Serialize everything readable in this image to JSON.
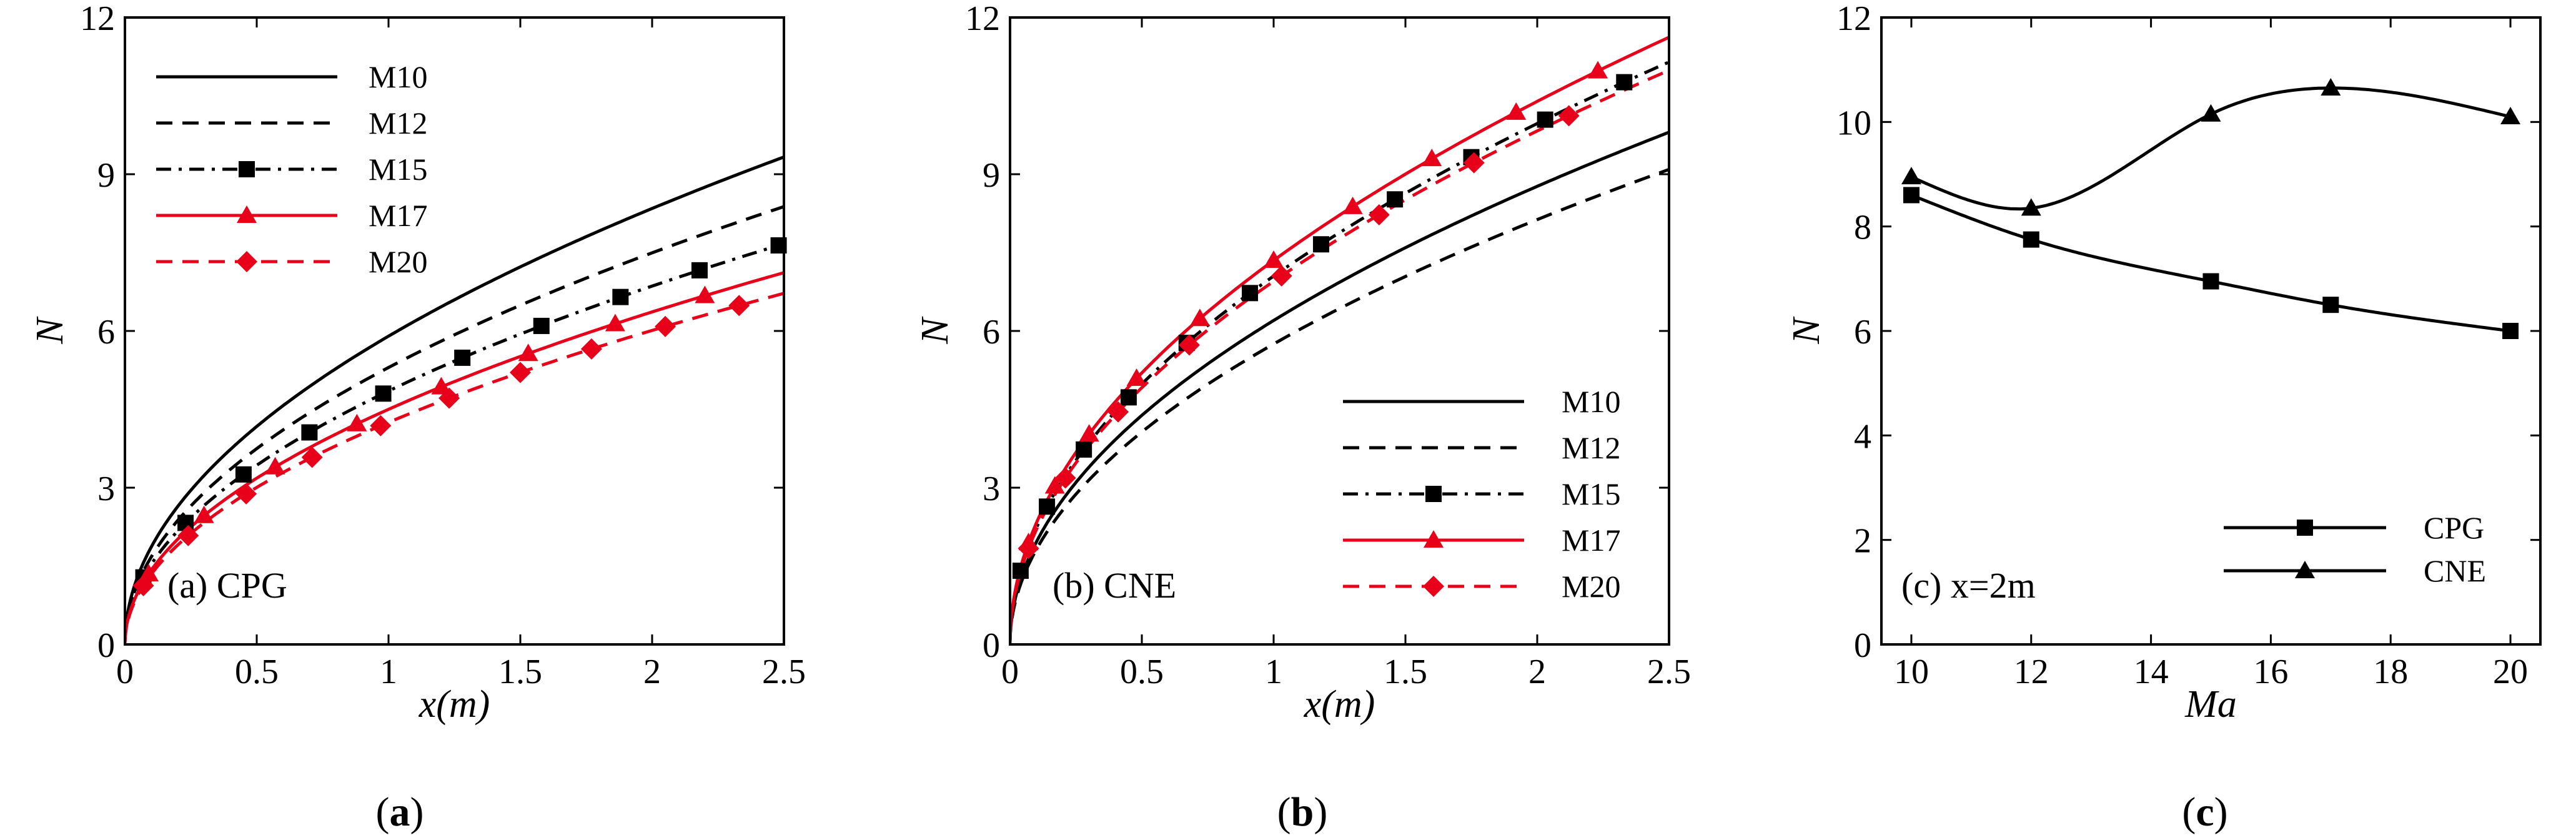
{
  "figure": {
    "captions": [
      "(a)",
      "(b)",
      "(c)"
    ]
  },
  "chart_data": [
    {
      "type": "line",
      "panel": "a",
      "annotation": "(a) CPG",
      "xlabel": "x(m)",
      "ylabel": "N",
      "xlim": [
        0,
        2.5
      ],
      "ylim": [
        0,
        12
      ],
      "xticks": [
        0,
        0.5,
        1,
        1.5,
        2,
        2.5
      ],
      "yticks": [
        0,
        3,
        6,
        9,
        12
      ],
      "legend_position": "top-left",
      "series": [
        {
          "name": "M10",
          "color": "#000000",
          "style": "solid",
          "marker": "none",
          "coef": 5.9,
          "exp": 0.5
        },
        {
          "name": "M12",
          "color": "#000000",
          "style": "dashed",
          "marker": "none",
          "coef": 5.3,
          "exp": 0.5
        },
        {
          "name": "M15",
          "color": "#000000",
          "style": "dashdot",
          "marker": "square",
          "coef": 4.85,
          "exp": 0.5,
          "marker_x": [
            0.07,
            0.23,
            0.45,
            0.7,
            0.98,
            1.28,
            1.58,
            1.88,
            2.18,
            2.48
          ]
        },
        {
          "name": "M17",
          "color": "#e8001b",
          "style": "solid",
          "marker": "triangle",
          "coef": 4.5,
          "exp": 0.5,
          "marker_x": [
            0.09,
            0.3,
            0.57,
            0.88,
            1.2,
            1.53,
            1.86,
            2.2
          ]
        },
        {
          "name": "M20",
          "color": "#e8001b",
          "style": "dashed",
          "marker": "diamond",
          "coef": 4.25,
          "exp": 0.5,
          "marker_x": [
            0.07,
            0.24,
            0.46,
            0.71,
            0.97,
            1.23,
            1.5,
            1.77,
            2.05,
            2.33
          ]
        }
      ]
    },
    {
      "type": "line",
      "panel": "b",
      "annotation": "(b) CNE",
      "xlabel": "x(m)",
      "ylabel": "N",
      "xlim": [
        0,
        2.5
      ],
      "ylim": [
        0,
        12
      ],
      "xticks": [
        0,
        0.5,
        1,
        1.5,
        2,
        2.5
      ],
      "yticks": [
        0,
        3,
        6,
        9,
        12
      ],
      "legend_position": "bottom-right",
      "series": [
        {
          "name": "M10",
          "color": "#000000",
          "style": "solid",
          "marker": "none",
          "coef": 6.2,
          "exp": 0.5
        },
        {
          "name": "M12",
          "color": "#000000",
          "style": "dashed",
          "marker": "none",
          "coef": 5.75,
          "exp": 0.5
        },
        {
          "name": "M15",
          "color": "#000000",
          "style": "dashdot",
          "marker": "square",
          "coef": 7.05,
          "exp": 0.5,
          "marker_x": [
            0.04,
            0.14,
            0.28,
            0.45,
            0.67,
            0.91,
            1.18,
            1.46,
            1.75,
            2.03,
            2.33
          ]
        },
        {
          "name": "M17",
          "color": "#e8001b",
          "style": "solid",
          "marker": "triangle",
          "coef": 7.35,
          "exp": 0.5,
          "marker_x": [
            0.07,
            0.17,
            0.3,
            0.48,
            0.72,
            1.0,
            1.3,
            1.6,
            1.92,
            2.23
          ]
        },
        {
          "name": "M20",
          "color": "#e8001b",
          "style": "dashed",
          "marker": "diamond",
          "coef": 6.95,
          "exp": 0.5,
          "marker_x": [
            0.07,
            0.21,
            0.41,
            0.68,
            1.03,
            1.4,
            1.76,
            2.12
          ]
        }
      ]
    },
    {
      "type": "line",
      "panel": "c",
      "annotation": "(c) x=2m",
      "xlabel": "Ma",
      "ylabel": "N",
      "xlim": [
        9.5,
        20.5
      ],
      "ylim": [
        0,
        12
      ],
      "xticks": [
        10,
        12,
        14,
        16,
        18,
        20
      ],
      "yticks": [
        0,
        2,
        4,
        6,
        8,
        10,
        12
      ],
      "legend_position": "bottom-right",
      "series": [
        {
          "name": "CPG",
          "color": "#000000",
          "style": "solid",
          "marker": "square",
          "x": [
            10,
            12,
            15,
            17,
            20
          ],
          "y": [
            8.6,
            7.75,
            6.95,
            6.5,
            6.0
          ]
        },
        {
          "name": "CNE",
          "color": "#000000",
          "style": "solid",
          "marker": "triangle",
          "x": [
            10,
            12,
            15,
            17,
            20
          ],
          "y": [
            8.95,
            8.35,
            10.15,
            10.65,
            10.1
          ]
        }
      ]
    }
  ]
}
